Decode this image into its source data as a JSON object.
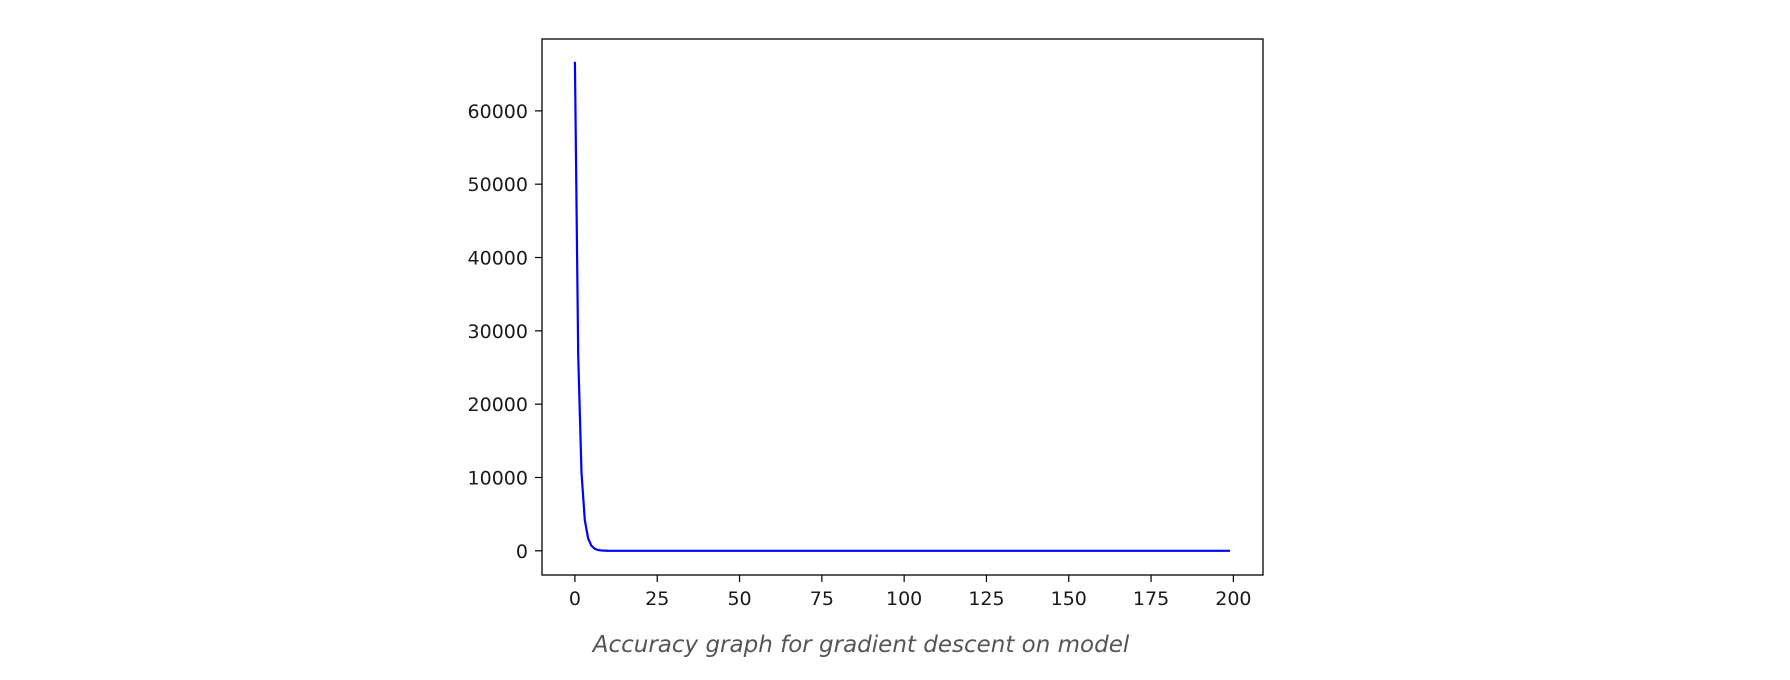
{
  "chart_data": {
    "type": "line",
    "title": "",
    "xlabel": "",
    "ylabel": "",
    "xlim": [
      -10,
      209
    ],
    "ylim": [
      -3300,
      69800
    ],
    "xticks": [
      0,
      25,
      50,
      75,
      100,
      125,
      150,
      175,
      200
    ],
    "yticks": [
      0,
      10000,
      20000,
      30000,
      40000,
      50000,
      60000
    ],
    "grid": false,
    "legend": "none",
    "series": [
      {
        "color": "#0000ff",
        "x": [
          0,
          1,
          2,
          3,
          4,
          5,
          6,
          7,
          8,
          10,
          15,
          20,
          50,
          100,
          150,
          199
        ],
        "y": [
          66700,
          26600,
          10600,
          4200,
          1700,
          700,
          280,
          110,
          45,
          10,
          1,
          0,
          0,
          0,
          0,
          0
        ]
      }
    ]
  },
  "caption": "Accuracy graph for gradient descent on model"
}
